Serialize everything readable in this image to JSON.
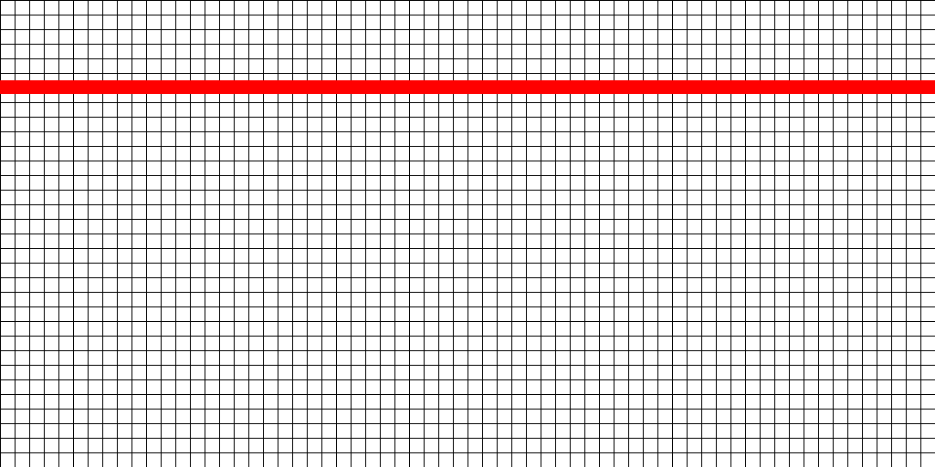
{
  "grid": {
    "line_color": "#000000",
    "background_color": "#ffffff"
  },
  "highlight": {
    "color": "#ff0000"
  }
}
